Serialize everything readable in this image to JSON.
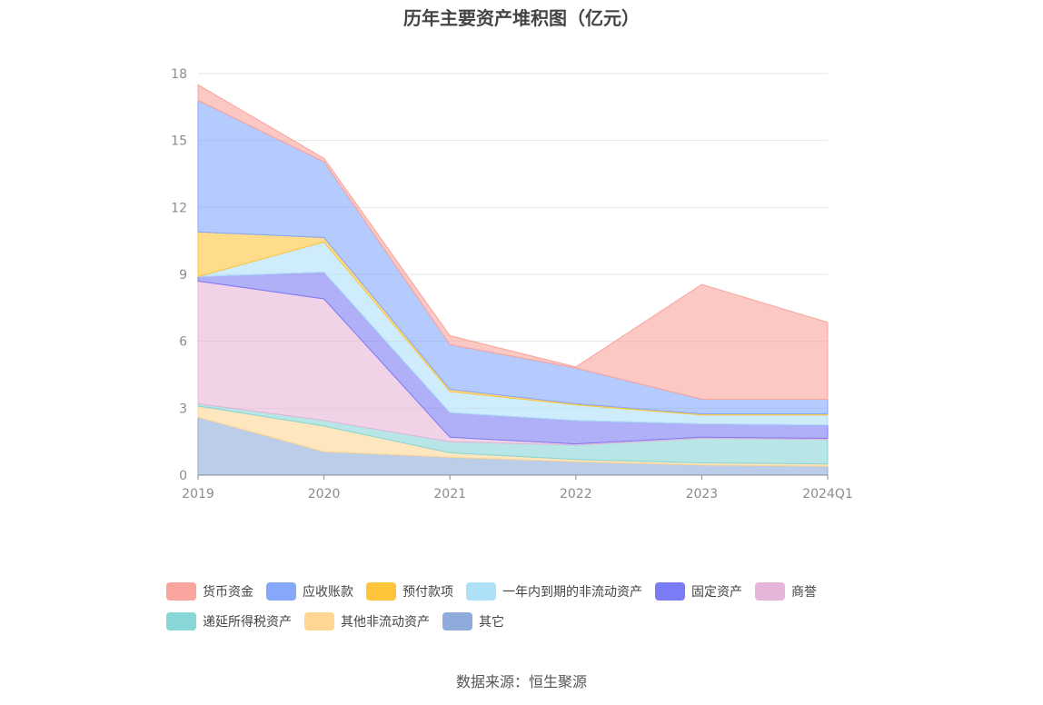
{
  "chart_data": {
    "type": "area",
    "stacked": true,
    "title": "历年主要资产堆积图（亿元）",
    "x": [
      "2019",
      "2020",
      "2021",
      "2022",
      "2023",
      "2024Q1"
    ],
    "ylim": [
      0,
      18
    ],
    "yticks": [
      0,
      3,
      6,
      9,
      12,
      15,
      18
    ],
    "grid": true,
    "legend_position": "bottom",
    "series": [
      {
        "name": "其它",
        "color": "#8fabdc",
        "values": [
          2.6,
          1.05,
          0.8,
          0.6,
          0.45,
          0.4
        ]
      },
      {
        "name": "其他非流动资产",
        "color": "#fed795",
        "values": [
          0.5,
          1.15,
          0.2,
          0.1,
          0.1,
          0.1
        ]
      },
      {
        "name": "递延所得税资产",
        "color": "#88d6d5",
        "values": [
          0.1,
          0.25,
          0.5,
          0.65,
          1.1,
          1.1
        ]
      },
      {
        "name": "商誉",
        "color": "#e6b5d7",
        "values": [
          5.5,
          5.45,
          0.2,
          0.05,
          0.05,
          0.05
        ]
      },
      {
        "name": "固定资产",
        "color": "#7b7bf5",
        "values": [
          0.2,
          1.2,
          1.1,
          1.05,
          0.6,
          0.6
        ]
      },
      {
        "name": "一年内到期的非流动资产",
        "color": "#aee0f8",
        "values": [
          0.0,
          1.35,
          0.95,
          0.7,
          0.4,
          0.45
        ]
      },
      {
        "name": "预付款项",
        "color": "#fec43a",
        "values": [
          2.0,
          0.2,
          0.1,
          0.05,
          0.05,
          0.05
        ]
      },
      {
        "name": "应收账款",
        "color": "#86a8fb",
        "values": [
          5.9,
          3.4,
          2.0,
          1.6,
          0.65,
          0.65
        ]
      },
      {
        "name": "货币资金",
        "color": "#f9a49d",
        "values": [
          0.7,
          0.15,
          0.4,
          0.05,
          5.15,
          3.45
        ]
      }
    ]
  },
  "source_text": "数据来源：恒生聚源"
}
